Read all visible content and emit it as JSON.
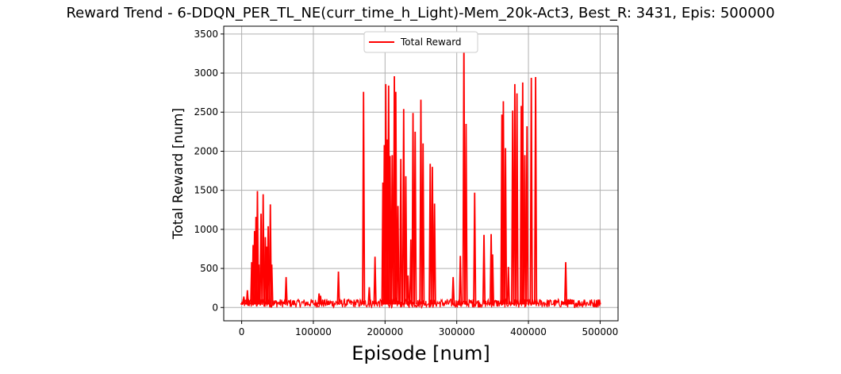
{
  "chart_data": {
    "type": "line",
    "title": "Reward Trend - 6-DDQN_PER_TL_NE(curr_time_h_Light)-Mem_20k-Act3, Best_R: 3431, Epis: 500000",
    "xlabel": "Episode [num]",
    "ylabel": "Total Reward [num]",
    "xlim": [
      -25000,
      525000
    ],
    "ylim": [
      -170,
      3600
    ],
    "xticks": [
      0,
      100000,
      200000,
      300000,
      400000,
      500000
    ],
    "xtick_labels": [
      "0",
      "100000",
      "200000",
      "300000",
      "400000",
      "500000"
    ],
    "yticks": [
      0,
      500,
      1000,
      1500,
      2000,
      2500,
      3000,
      3500
    ],
    "ytick_labels": [
      "0",
      "500",
      "1000",
      "1500",
      "2000",
      "2500",
      "3000",
      "3500"
    ],
    "grid": true,
    "legend_position": "upper center",
    "colors": {
      "series": "#ff0000",
      "grid": "#b0b0b0"
    },
    "baseline": {
      "x_range": [
        0,
        500000
      ],
      "y_min": 0,
      "y_max": 110,
      "noise_note": "dense fluctuation between 0 and ~110"
    },
    "series": [
      {
        "name": "Total Reward",
        "x": [
          0,
          3000,
          5000,
          8000,
          10000,
          14000,
          16000,
          18000,
          20000,
          22000,
          24000,
          27000,
          30000,
          33000,
          35000,
          37000,
          40000,
          42000,
          45000,
          62000,
          108000,
          110000,
          135000,
          170000,
          178000,
          186000,
          197000,
          199000,
          201000,
          203000,
          205000,
          207000,
          210000,
          213000,
          215000,
          218000,
          222000,
          226000,
          229000,
          232000,
          236000,
          239000,
          242000,
          250000,
          253000,
          263000,
          266000,
          269000,
          295000,
          305000,
          310000,
          313000,
          325000,
          338000,
          348000,
          350000,
          363000,
          365000,
          368000,
          372000,
          378000,
          381000,
          384000,
          390000,
          392000,
          395000,
          398000,
          404000,
          410000,
          452000,
          455000,
          458000,
          461000,
          478000,
          497000,
          499000
        ],
        "y": [
          50,
          140,
          60,
          220,
          80,
          580,
          800,
          980,
          1160,
          1490,
          550,
          1200,
          1450,
          900,
          780,
          1040,
          1320,
          550,
          60,
          390,
          180,
          150,
          460,
          2760,
          260,
          650,
          1600,
          2080,
          2860,
          2150,
          2840,
          1940,
          1950,
          2960,
          2760,
          1300,
          1900,
          2540,
          1680,
          410,
          870,
          2490,
          2250,
          2660,
          2100,
          1840,
          1800,
          1330,
          390,
          660,
          3431,
          2350,
          1470,
          930,
          940,
          680,
          2470,
          2640,
          2040,
          520,
          2520,
          2860,
          2740,
          2580,
          2880,
          1950,
          2320,
          2940,
          2950,
          580,
          100,
          100,
          100,
          100,
          100,
          100
        ]
      }
    ]
  }
}
